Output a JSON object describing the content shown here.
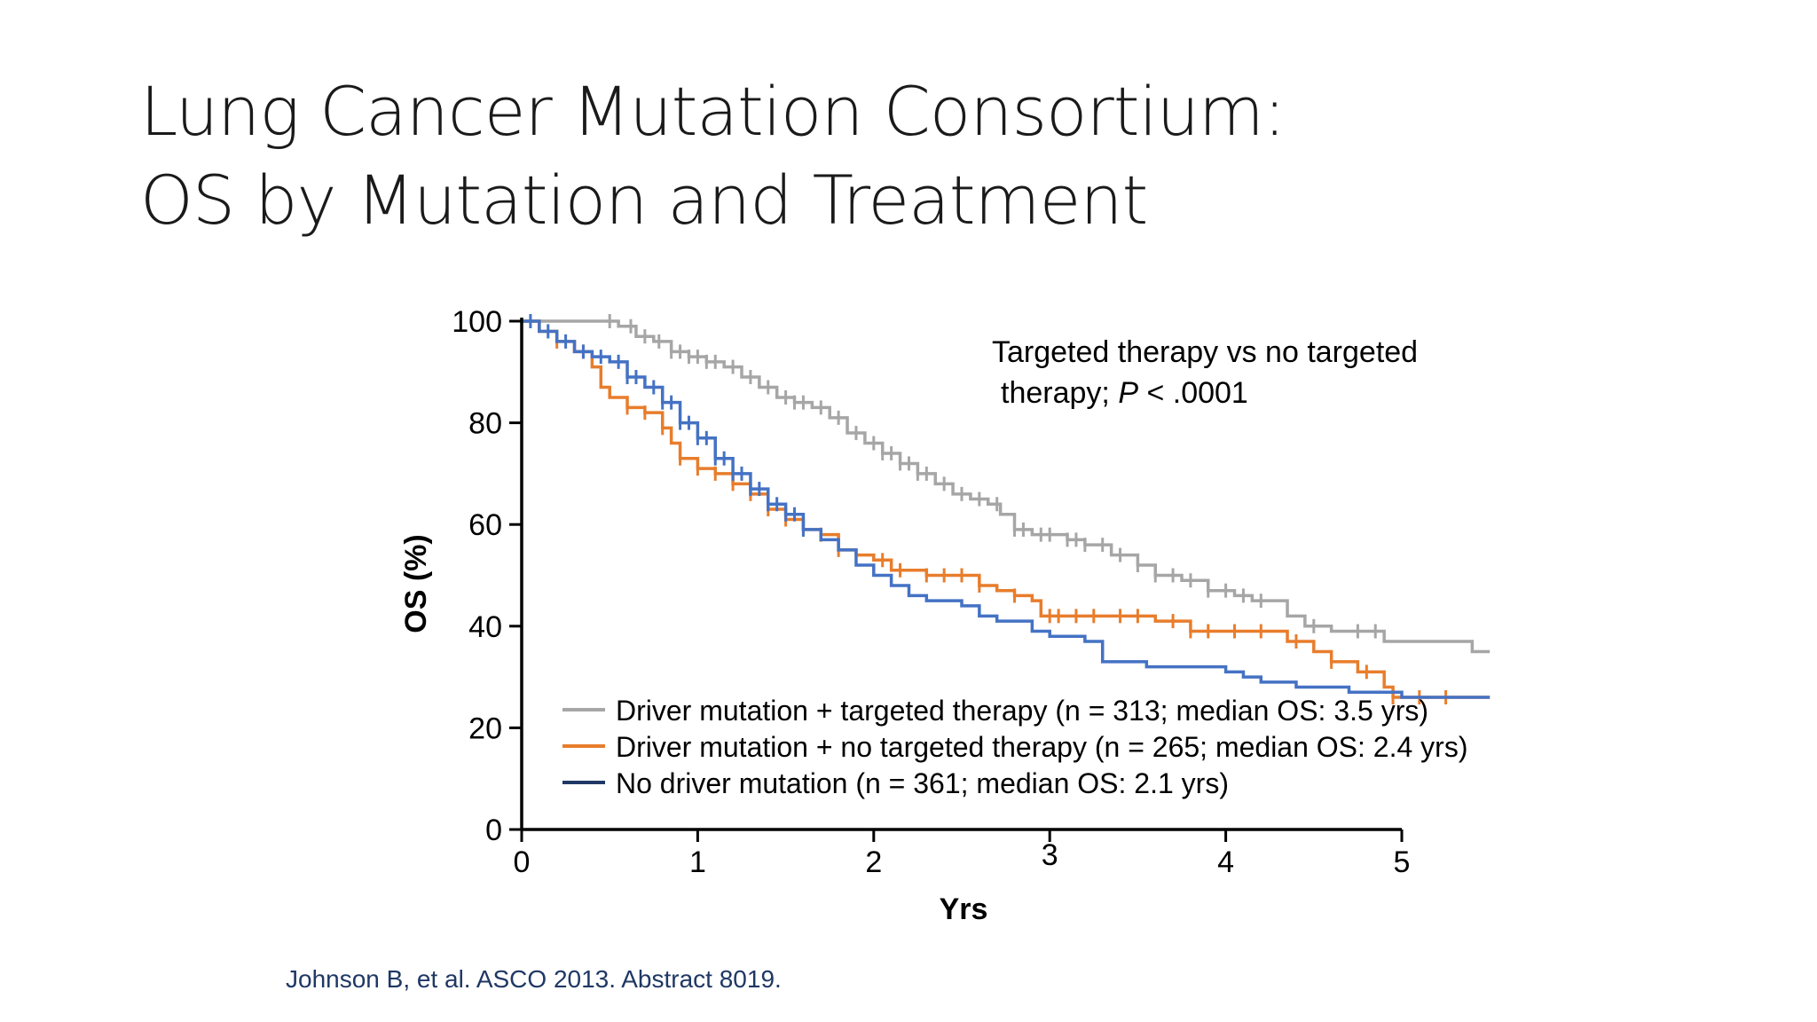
{
  "slide": {
    "title_line1": "Lung Cancer Mutation Consortium:",
    "title_line2": "OS by Mutation and Treatment",
    "citation": "Johnson B, et al. ASCO 2013. Abstract 8019."
  },
  "chart_data": {
    "type": "line",
    "subtype": "kaplan-meier",
    "xlabel": "Yrs",
    "ylabel": "OS (%)",
    "xlim": [
      0,
      5.5
    ],
    "ylim": [
      0,
      100
    ],
    "x_ticks": [
      "0",
      "1",
      "2",
      "3",
      "4",
      "5"
    ],
    "y_ticks": [
      "0",
      "20",
      "40",
      "60",
      "80",
      "100"
    ],
    "grid": false,
    "legend_position": "bottom-inside",
    "annotation_line1": "Targeted therapy vs no targeted",
    "annotation_line2_prefix": "therapy; ",
    "annotation_line2_italic": "P",
    "annotation_line2_suffix": " < .0001",
    "series": [
      {
        "name": "Driver mutation + targeted therapy (n = 313; median OS: 3.5 yrs)",
        "color": "#a6a6a6",
        "legend_color": "#a6a6a6",
        "points": [
          [
            0,
            100
          ],
          [
            0.45,
            100
          ],
          [
            0.55,
            99
          ],
          [
            0.65,
            97
          ],
          [
            0.75,
            96
          ],
          [
            0.85,
            94
          ],
          [
            0.95,
            93
          ],
          [
            1.05,
            92
          ],
          [
            1.15,
            91
          ],
          [
            1.25,
            89
          ],
          [
            1.35,
            87
          ],
          [
            1.45,
            85
          ],
          [
            1.55,
            84
          ],
          [
            1.65,
            83
          ],
          [
            1.75,
            81
          ],
          [
            1.85,
            78
          ],
          [
            1.95,
            76
          ],
          [
            2.05,
            74
          ],
          [
            2.15,
            72
          ],
          [
            2.25,
            70
          ],
          [
            2.35,
            68
          ],
          [
            2.45,
            66
          ],
          [
            2.55,
            65
          ],
          [
            2.65,
            64
          ],
          [
            2.72,
            62
          ],
          [
            2.8,
            59
          ],
          [
            2.9,
            58
          ],
          [
            3.0,
            58
          ],
          [
            3.1,
            57
          ],
          [
            3.2,
            56
          ],
          [
            3.35,
            54
          ],
          [
            3.5,
            52
          ],
          [
            3.6,
            50
          ],
          [
            3.75,
            49
          ],
          [
            3.9,
            47
          ],
          [
            4.05,
            46
          ],
          [
            4.15,
            45
          ],
          [
            4.35,
            45
          ],
          [
            4.35,
            42
          ],
          [
            4.45,
            40
          ],
          [
            4.6,
            39
          ],
          [
            4.9,
            39
          ],
          [
            4.9,
            37
          ],
          [
            5.3,
            37
          ],
          [
            5.4,
            35
          ],
          [
            5.5,
            35
          ]
        ],
        "censor_x": [
          0.5,
          0.62,
          0.7,
          0.78,
          0.85,
          0.9,
          0.95,
          1.0,
          1.05,
          1.1,
          1.2,
          1.3,
          1.4,
          1.5,
          1.55,
          1.6,
          1.7,
          1.8,
          1.9,
          2.0,
          2.05,
          2.1,
          2.15,
          2.2,
          2.25,
          2.3,
          2.4,
          2.5,
          2.6,
          2.7,
          2.8,
          2.85,
          2.95,
          3.0,
          3.1,
          3.15,
          3.2,
          3.3,
          3.4,
          3.5,
          3.6,
          3.7,
          3.8,
          3.9,
          4.0,
          4.1,
          4.2,
          4.5,
          4.75,
          4.85
        ]
      },
      {
        "name": "Driver mutation + no targeted therapy (n = 265; median OS: 2.4 yrs)",
        "color": "#e87d2c",
        "legend_color": "#e87d2c",
        "points": [
          [
            0,
            100
          ],
          [
            0.1,
            98
          ],
          [
            0.2,
            96
          ],
          [
            0.3,
            94
          ],
          [
            0.4,
            91
          ],
          [
            0.45,
            87
          ],
          [
            0.5,
            85
          ],
          [
            0.6,
            83
          ],
          [
            0.7,
            82
          ],
          [
            0.8,
            79
          ],
          [
            0.85,
            76
          ],
          [
            0.9,
            73
          ],
          [
            1.0,
            71
          ],
          [
            1.1,
            70
          ],
          [
            1.2,
            68
          ],
          [
            1.3,
            66
          ],
          [
            1.4,
            63
          ],
          [
            1.5,
            61
          ],
          [
            1.6,
            59
          ],
          [
            1.7,
            58
          ],
          [
            1.8,
            55
          ],
          [
            1.9,
            54
          ],
          [
            2.0,
            53
          ],
          [
            2.1,
            51
          ],
          [
            2.2,
            51
          ],
          [
            2.3,
            50
          ],
          [
            2.4,
            50
          ],
          [
            2.5,
            50
          ],
          [
            2.6,
            48
          ],
          [
            2.7,
            47
          ],
          [
            2.8,
            46
          ],
          [
            2.9,
            45
          ],
          [
            2.95,
            42
          ],
          [
            3.3,
            42
          ],
          [
            3.6,
            41
          ],
          [
            3.8,
            39
          ],
          [
            4.3,
            39
          ],
          [
            4.35,
            37
          ],
          [
            4.5,
            35
          ],
          [
            4.6,
            33
          ],
          [
            4.75,
            31
          ],
          [
            4.9,
            28
          ],
          [
            4.95,
            26
          ],
          [
            5.5,
            26
          ]
        ],
        "censor_x": [
          0.2,
          0.35,
          0.6,
          0.7,
          0.8,
          0.9,
          1.0,
          1.1,
          1.2,
          1.3,
          1.4,
          1.5,
          1.6,
          1.7,
          1.8,
          2.05,
          2.15,
          2.3,
          2.4,
          2.5,
          2.6,
          2.8,
          3.0,
          3.05,
          3.15,
          3.25,
          3.4,
          3.5,
          3.7,
          3.8,
          3.9,
          4.05,
          4.2,
          4.4,
          4.6,
          4.8,
          4.95,
          5.1,
          5.25
        ]
      },
      {
        "name": "No driver mutation (n = 361; median OS: 2.1 yrs)",
        "color": "#4472c4",
        "legend_color": "#1f3864",
        "points": [
          [
            0,
            100
          ],
          [
            0.1,
            98
          ],
          [
            0.2,
            96
          ],
          [
            0.3,
            94
          ],
          [
            0.4,
            93
          ],
          [
            0.5,
            92
          ],
          [
            0.6,
            89
          ],
          [
            0.7,
            87
          ],
          [
            0.8,
            84
          ],
          [
            0.9,
            80
          ],
          [
            1.0,
            77
          ],
          [
            1.1,
            73
          ],
          [
            1.2,
            70
          ],
          [
            1.3,
            67
          ],
          [
            1.4,
            64
          ],
          [
            1.5,
            62
          ],
          [
            1.6,
            59
          ],
          [
            1.7,
            57
          ],
          [
            1.8,
            55
          ],
          [
            1.9,
            52
          ],
          [
            2.0,
            50
          ],
          [
            2.1,
            48
          ],
          [
            2.2,
            46
          ],
          [
            2.3,
            45
          ],
          [
            2.4,
            45
          ],
          [
            2.5,
            44
          ],
          [
            2.6,
            42
          ],
          [
            2.7,
            41
          ],
          [
            2.9,
            39
          ],
          [
            3.0,
            38
          ],
          [
            3.2,
            37
          ],
          [
            3.3,
            33
          ],
          [
            3.4,
            33
          ],
          [
            3.55,
            32
          ],
          [
            4.0,
            31
          ],
          [
            4.1,
            30
          ],
          [
            4.2,
            29
          ],
          [
            4.4,
            28
          ],
          [
            4.7,
            27
          ],
          [
            5.0,
            26
          ],
          [
            5.5,
            26
          ]
        ],
        "censor_x": [
          0.05,
          0.15,
          0.25,
          0.35,
          0.45,
          0.55,
          0.6,
          0.65,
          0.75,
          0.8,
          0.85,
          0.9,
          0.95,
          1.0,
          1.05,
          1.1,
          1.15,
          1.2,
          1.25,
          1.3,
          1.35,
          1.4,
          1.45,
          1.5,
          1.55,
          1.6
        ]
      }
    ]
  }
}
